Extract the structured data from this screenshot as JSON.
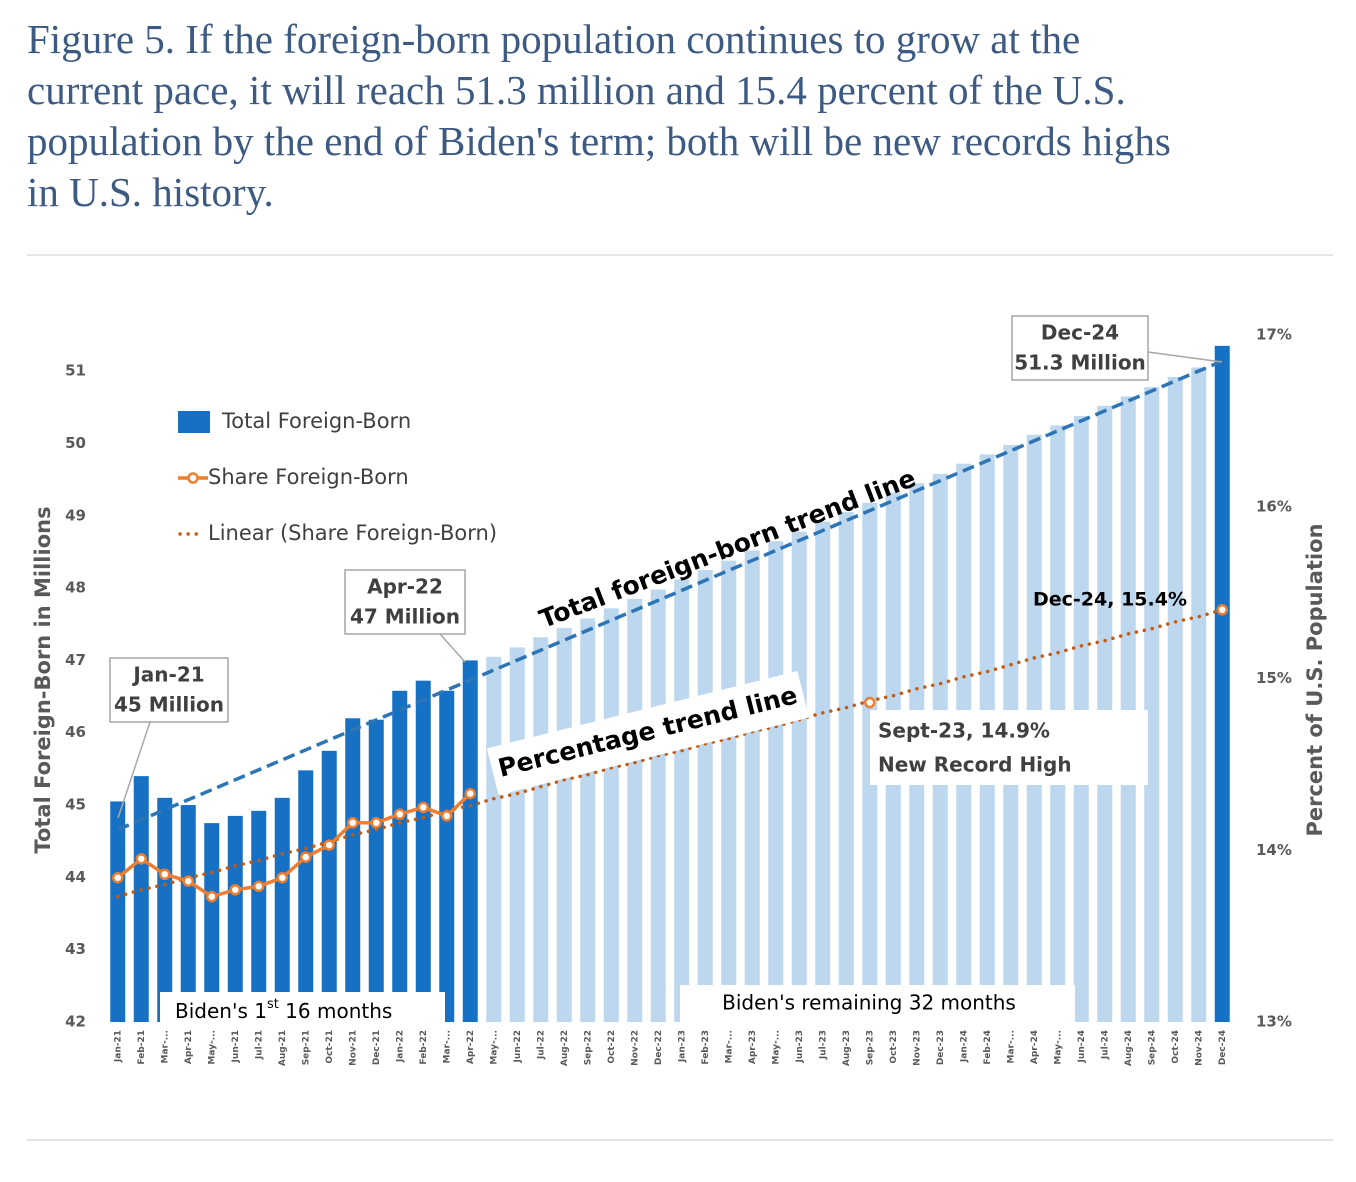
{
  "chart_data": {
    "type": "bar",
    "title_lines": [
      "Figure 5. If the foreign-born population continues to grow at the",
      "current pace, it will reach 51.3 million and 15.4 percent of the U.S.",
      "population by the end of Biden's term; both will be new records highs",
      "in U.S. history."
    ],
    "ylabel": "Total Foreign-Born in Millions",
    "y2label": "Percent of U.S. Population",
    "categories": [
      "Jan-21",
      "Feb-21",
      "Mar-...",
      "Apr-21",
      "May-...",
      "Jun-21",
      "Jul-21",
      "Aug-21",
      "Sep-21",
      "Oct-21",
      "Nov-21",
      "Dec-21",
      "Jan-22",
      "Feb-22",
      "Mar-...",
      "Apr-22",
      "May-...",
      "Jun-22",
      "Jul-22",
      "Aug-22",
      "Sep-22",
      "Oct-22",
      "Nov-22",
      "Dec-22",
      "Jan-23",
      "Feb-23",
      "Mar-...",
      "Apr-23",
      "May-...",
      "Jun-23",
      "Jul-23",
      "Aug-23",
      "Sep-23",
      "Oct-23",
      "Nov-23",
      "Dec-23",
      "Jan-24",
      "Feb-24",
      "Mar-...",
      "Apr-24",
      "May-...",
      "Jun-24",
      "Jul-24",
      "Aug-24",
      "Sep-24",
      "Oct-24",
      "Nov-24",
      "Dec-24"
    ],
    "series": [
      {
        "name": "Total Foreign-Born",
        "type": "bar",
        "color": "#1670c4",
        "values": [
          45.05,
          45.4,
          45.1,
          45.0,
          44.75,
          44.85,
          44.92,
          45.1,
          45.48,
          45.75,
          46.2,
          46.18,
          46.58,
          46.72,
          46.58,
          47.0,
          47.05,
          47.18,
          47.32,
          47.45,
          47.58,
          47.72,
          47.85,
          47.98,
          48.12,
          48.25,
          48.38,
          48.52,
          48.65,
          48.78,
          48.92,
          49.05,
          49.18,
          49.32,
          49.45,
          49.58,
          49.72,
          49.85,
          49.98,
          50.12,
          50.25,
          50.38,
          50.52,
          50.65,
          50.78,
          50.92,
          51.05,
          51.35
        ],
        "bar_colors": [
          "#1670c4",
          "#1670c4",
          "#1670c4",
          "#1670c4",
          "#1670c4",
          "#1670c4",
          "#1670c4",
          "#1670c4",
          "#1670c4",
          "#1670c4",
          "#1670c4",
          "#1670c4",
          "#1670c4",
          "#1670c4",
          "#1670c4",
          "#1670c4",
          "#bdd7ee",
          "#bdd7ee",
          "#bdd7ee",
          "#bdd7ee",
          "#bdd7ee",
          "#bdd7ee",
          "#bdd7ee",
          "#bdd7ee",
          "#bdd7ee",
          "#bdd7ee",
          "#bdd7ee",
          "#bdd7ee",
          "#bdd7ee",
          "#bdd7ee",
          "#bdd7ee",
          "#bdd7ee",
          "#bdd7ee",
          "#bdd7ee",
          "#bdd7ee",
          "#bdd7ee",
          "#bdd7ee",
          "#bdd7ee",
          "#bdd7ee",
          "#bdd7ee",
          "#bdd7ee",
          "#bdd7ee",
          "#bdd7ee",
          "#bdd7ee",
          "#bdd7ee",
          "#bdd7ee",
          "#bdd7ee",
          "#1670c4"
        ]
      },
      {
        "name": "Share Foreign-Born",
        "type": "line",
        "axis": "y2",
        "color": "#ed7d31",
        "values": [
          13.84,
          13.95,
          13.86,
          13.82,
          13.73,
          13.77,
          13.79,
          13.84,
          13.96,
          14.03,
          14.16,
          14.16,
          14.21,
          14.25,
          14.2,
          14.33,
          null,
          null,
          null,
          null,
          null,
          null,
          null,
          null,
          null,
          null,
          null,
          null,
          null,
          null,
          null,
          null,
          14.86,
          null,
          null,
          null,
          null,
          null,
          null,
          null,
          null,
          null,
          null,
          null,
          null,
          null,
          null,
          15.4
        ]
      },
      {
        "name": "Linear (Share Foreign-Born)",
        "type": "trend",
        "axis": "y2",
        "color": "#c55a11",
        "values": [
          13.73,
          13.77,
          13.8,
          13.84,
          13.87,
          13.91,
          13.94,
          13.98,
          14.01,
          14.05,
          14.09,
          14.12,
          14.16,
          14.19,
          14.23,
          14.26,
          14.3,
          14.33,
          14.37,
          14.41,
          14.44,
          14.48,
          14.51,
          14.55,
          14.58,
          14.62,
          14.65,
          14.69,
          14.72,
          14.76,
          14.8,
          14.83,
          14.87,
          14.9,
          14.94,
          14.97,
          15.01,
          15.04,
          15.08,
          15.12,
          15.15,
          15.19,
          15.22,
          15.26,
          15.29,
          15.33,
          15.36,
          15.4
        ]
      }
    ],
    "total_trend": {
      "color": "#2e75b6",
      "values": [
        44.66,
        51.14
      ]
    },
    "ylim": [
      42,
      51.5
    ],
    "yticks": [
      42,
      43,
      44,
      45,
      46,
      47,
      48,
      49,
      50,
      51
    ],
    "y2lim": [
      13,
      17
    ],
    "y2ticks": [
      {
        "value": 13,
        "label": "13%"
      },
      {
        "value": 14,
        "label": "14%"
      },
      {
        "value": 15,
        "label": "15%"
      },
      {
        "value": 16,
        "label": "16%"
      },
      {
        "value": 17,
        "label": "17%"
      }
    ],
    "legend": "upper left",
    "annotations": [
      {
        "lines": [
          "Jan-21",
          "45 Million"
        ]
      },
      {
        "lines": [
          "Apr-22",
          "47 Million"
        ]
      },
      {
        "lines": [
          "Dec-24",
          "51.3 Million"
        ]
      },
      {
        "lines": [
          "Dec-24, 15.4%"
        ]
      },
      {
        "lines": [
          "Sept-23, 14.9%",
          "New Record High"
        ]
      },
      {
        "lines": [
          "Total foreign-born trend line"
        ]
      },
      {
        "lines": [
          "Percentage trend line"
        ]
      },
      {
        "lines": [
          "Biden's remaining 32 months"
        ]
      }
    ],
    "first_months_label": {
      "before": "Biden's 1",
      "sup": "st",
      "after": " 16 months"
    }
  }
}
